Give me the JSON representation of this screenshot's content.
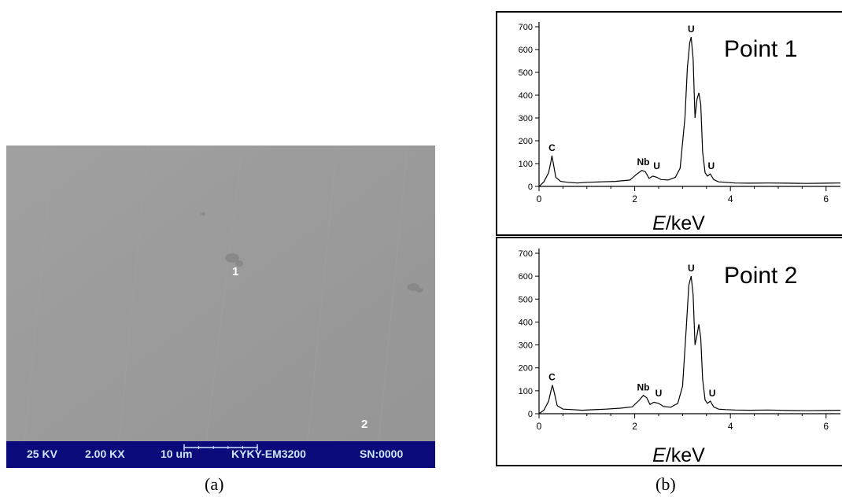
{
  "sem": {
    "point_labels": [
      "1",
      "2"
    ],
    "info_bar": {
      "voltage": "25 KV",
      "magnification": "2.00 KX",
      "scale": "10 um",
      "instrument": "KYKY-EM3200",
      "serial": "SN:0000"
    },
    "caption": "(a)",
    "colors": {
      "background": "#999999",
      "bar": "#0a0a7a",
      "bar_text": "#cfe6ff"
    }
  },
  "spectra_caption": "(b)",
  "chart_data": [
    {
      "type": "line",
      "title": "Point 1",
      "xlabel_italic": "E",
      "xlabel_unit": "/keV",
      "xlim": [
        0,
        6.3
      ],
      "ylim": [
        0,
        700
      ],
      "xticks": [
        0,
        2,
        4,
        6
      ],
      "yticks": [
        0,
        100,
        200,
        300,
        400,
        500,
        600,
        700
      ],
      "peak_labels": [
        {
          "text": "C",
          "x": 0.27,
          "y": 135
        },
        {
          "text": "Nb",
          "x": 2.18,
          "y": 72
        },
        {
          "text": "U",
          "x": 2.46,
          "y": 55
        },
        {
          "text": "U",
          "x": 3.18,
          "y": 655
        },
        {
          "text": "U",
          "x": 3.6,
          "y": 55
        }
      ],
      "series": [
        {
          "x": [
            0.0,
            0.1,
            0.2,
            0.25,
            0.27,
            0.3,
            0.35,
            0.45,
            0.6,
            0.8,
            1.0,
            1.3,
            1.6,
            1.9,
            2.05,
            2.15,
            2.22,
            2.3,
            2.38,
            2.46,
            2.55,
            2.7,
            2.85,
            2.95,
            3.05,
            3.1,
            3.15,
            3.18,
            3.22,
            3.26,
            3.3,
            3.34,
            3.38,
            3.42,
            3.47,
            3.52,
            3.58,
            3.65,
            3.75,
            3.9,
            4.1,
            4.4,
            4.8,
            5.2,
            5.6,
            6.0,
            6.3
          ],
          "y": [
            0,
            20,
            60,
            110,
            135,
            100,
            40,
            22,
            18,
            15,
            18,
            20,
            22,
            28,
            55,
            70,
            65,
            35,
            45,
            40,
            30,
            28,
            40,
            80,
            300,
            520,
            630,
            655,
            560,
            300,
            380,
            410,
            360,
            150,
            60,
            45,
            55,
            30,
            20,
            18,
            15,
            14,
            15,
            14,
            13,
            14,
            15
          ]
        }
      ]
    },
    {
      "type": "line",
      "title": "Point 2",
      "xlabel_italic": "E",
      "xlabel_unit": "/keV",
      "xlim": [
        0,
        6.3
      ],
      "ylim": [
        0,
        700
      ],
      "xticks": [
        0,
        2,
        4,
        6
      ],
      "yticks": [
        0,
        100,
        200,
        300,
        400,
        500,
        600,
        700
      ],
      "peak_labels": [
        {
          "text": "C",
          "x": 0.27,
          "y": 125
        },
        {
          "text": "Nb",
          "x": 2.18,
          "y": 80
        },
        {
          "text": "U",
          "x": 2.5,
          "y": 55
        },
        {
          "text": "U",
          "x": 3.18,
          "y": 600
        },
        {
          "text": "U",
          "x": 3.62,
          "y": 55
        }
      ],
      "series": [
        {
          "x": [
            0.0,
            0.1,
            0.2,
            0.25,
            0.28,
            0.32,
            0.38,
            0.5,
            0.7,
            0.9,
            1.1,
            1.4,
            1.7,
            1.95,
            2.1,
            2.18,
            2.25,
            2.32,
            2.4,
            2.5,
            2.6,
            2.75,
            2.9,
            3.0,
            3.08,
            3.13,
            3.18,
            3.22,
            3.26,
            3.3,
            3.34,
            3.38,
            3.42,
            3.47,
            3.52,
            3.58,
            3.65,
            3.75,
            3.9,
            4.1,
            4.4,
            4.8,
            5.2,
            5.6,
            6.0,
            6.3
          ],
          "y": [
            0,
            15,
            55,
            100,
            125,
            90,
            35,
            20,
            18,
            15,
            17,
            20,
            24,
            30,
            60,
            80,
            70,
            40,
            50,
            45,
            32,
            28,
            45,
            120,
            380,
            560,
            600,
            520,
            300,
            340,
            390,
            330,
            150,
            60,
            45,
            55,
            30,
            20,
            18,
            16,
            15,
            16,
            14,
            13,
            14,
            15
          ]
        }
      ]
    }
  ]
}
